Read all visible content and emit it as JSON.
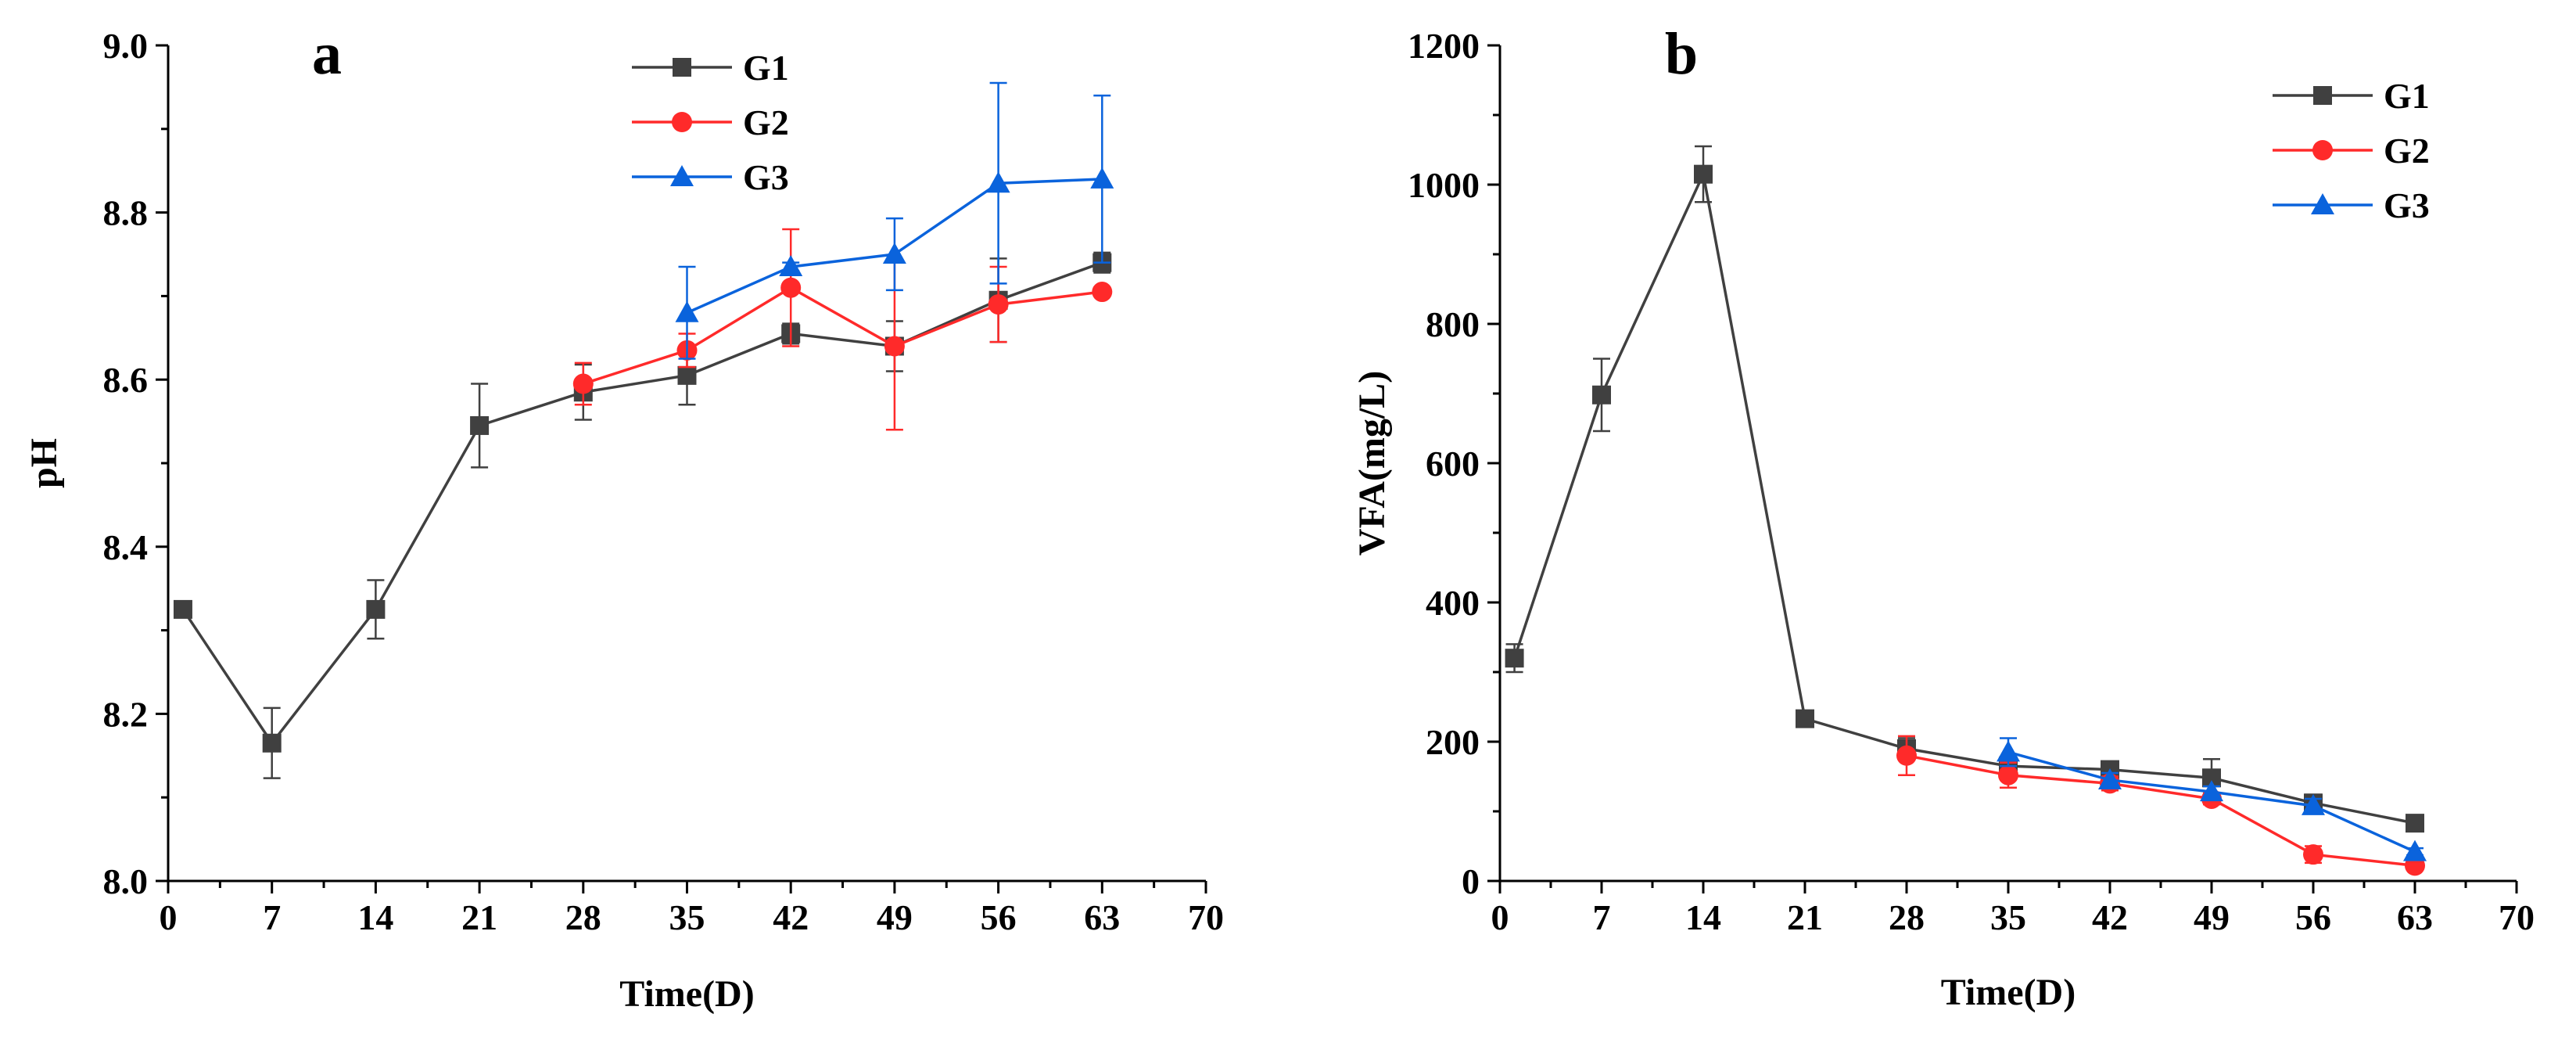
{
  "colors": {
    "G1": "#404040",
    "G2": "#ff2a2a",
    "G3": "#0a63dc",
    "axis": "#000000"
  },
  "chart_data": [
    {
      "type": "line",
      "panel_label": "a",
      "xlabel": "Time(D)",
      "ylabel": "pH",
      "xlim": [
        0,
        70
      ],
      "ylim": [
        8.0,
        9.0
      ],
      "xticks": [
        0,
        7,
        14,
        21,
        28,
        35,
        42,
        49,
        56,
        63,
        70
      ],
      "xtick_labels": [
        "0",
        "7",
        "14",
        "21",
        "28",
        "35",
        "42",
        "49",
        "56",
        "63",
        "70"
      ],
      "yticks": [
        8.0,
        8.2,
        8.4,
        8.6,
        8.8,
        9.0
      ],
      "ytick_labels": [
        "8.0",
        "8.2",
        "8.4",
        "8.6",
        "8.8",
        "9.0"
      ],
      "legend": "top-center",
      "series": [
        {
          "name": "G1",
          "marker": "square",
          "x": [
            1,
            7,
            14,
            21,
            28,
            35,
            42,
            49,
            56,
            63
          ],
          "y": [
            8.325,
            8.165,
            8.325,
            8.545,
            8.585,
            8.605,
            8.655,
            8.64,
            8.695,
            8.74
          ],
          "err": [
            0.005,
            0.042,
            0.035,
            0.05,
            0.033,
            0.035,
            0.012,
            0.03,
            0.05,
            0.012
          ]
        },
        {
          "name": "G2",
          "marker": "circle",
          "x": [
            28,
            35,
            42,
            49,
            56,
            63
          ],
          "y": [
            8.595,
            8.635,
            8.71,
            8.64,
            8.69,
            8.705
          ],
          "err": [
            0.025,
            0.02,
            0.07,
            0.1,
            0.045,
            0.005
          ]
        },
        {
          "name": "G3",
          "marker": "triangle",
          "x": [
            35,
            42,
            49,
            56,
            63
          ],
          "y": [
            8.68,
            8.735,
            8.75,
            8.835,
            8.84
          ],
          "err": [
            0.055,
            0.005,
            0.043,
            0.12,
            0.1
          ]
        }
      ]
    },
    {
      "type": "line",
      "panel_label": "b",
      "xlabel": "Time(D)",
      "ylabel": "VFA(mg/L)",
      "xlim": [
        0,
        70
      ],
      "ylim": [
        0,
        1200
      ],
      "xticks": [
        0,
        7,
        14,
        21,
        28,
        35,
        42,
        49,
        56,
        63,
        70
      ],
      "xtick_labels": [
        "0",
        "7",
        "14",
        "21",
        "28",
        "35",
        "42",
        "49",
        "56",
        "63",
        "70"
      ],
      "yticks": [
        0,
        200,
        400,
        600,
        800,
        1000,
        1200
      ],
      "ytick_labels": [
        "0",
        "200",
        "400",
        "600",
        "800",
        "1000",
        "1200"
      ],
      "legend": "top-right",
      "series": [
        {
          "name": "G1",
          "marker": "square",
          "x": [
            1,
            7,
            14,
            21,
            28,
            35,
            42,
            49,
            56,
            63
          ],
          "y": [
            320,
            698,
            1015,
            233,
            190,
            165,
            160,
            148,
            112,
            83
          ],
          "err": [
            20,
            52,
            40,
            10,
            15,
            12,
            10,
            27,
            12,
            8
          ]
        },
        {
          "name": "G2",
          "marker": "circle",
          "x": [
            28,
            35,
            42,
            49,
            56,
            63
          ],
          "y": [
            180,
            152,
            140,
            118,
            38,
            22
          ],
          "err": [
            28,
            18,
            10,
            8,
            12,
            5
          ]
        },
        {
          "name": "G3",
          "marker": "triangle",
          "x": [
            35,
            42,
            49,
            56,
            63
          ],
          "y": [
            185,
            145,
            128,
            108,
            42
          ],
          "err": [
            20,
            10,
            8,
            10,
            5
          ]
        }
      ]
    }
  ]
}
